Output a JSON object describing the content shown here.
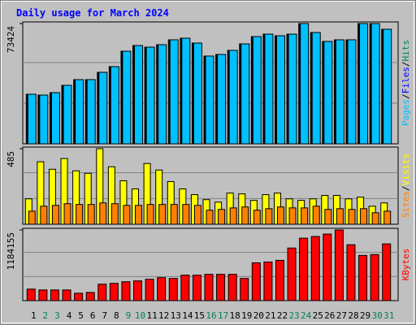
{
  "chart_data": [
    {
      "type": "bar",
      "title": "Daily usage for March 2024",
      "categories": [
        "1",
        "2",
        "3",
        "4",
        "5",
        "6",
        "7",
        "8",
        "9",
        "10",
        "11",
        "12",
        "13",
        "14",
        "15",
        "16",
        "17",
        "18",
        "19",
        "20",
        "21",
        "22",
        "23",
        "24",
        "25",
        "26",
        "27",
        "28",
        "29",
        "30",
        "31"
      ],
      "category_colors": [
        "#000000",
        "#00805c",
        "#00805c",
        "#000000",
        "#000000",
        "#000000",
        "#000000",
        "#000000",
        "#00805c",
        "#00805c",
        "#000000",
        "#000000",
        "#000000",
        "#000000",
        "#000000",
        "#00805c",
        "#00805c",
        "#000000",
        "#000000",
        "#000000",
        "#000000",
        "#000000",
        "#00805c",
        "#00805c",
        "#000000",
        "#000000",
        "#000000",
        "#000000",
        "#000000",
        "#00805c",
        "#00805c"
      ],
      "legend_separator": "/",
      "ylim": [
        0,
        73424
      ],
      "yticks": [
        73424
      ],
      "series": [
        {
          "name": "Hits",
          "color": "#00805c",
          "values": [
            30262,
            29766,
            31255,
            35720,
            39193,
            39193,
            43658,
            47130,
            56557,
            60029,
            59037,
            60525,
            63502,
            64494,
            61517,
            53580,
            54572,
            57052,
            61021,
            65486,
            66974,
            65982,
            66974,
            73424,
            67966,
            62509,
            63502,
            63502,
            73424,
            73424,
            69951
          ]
        },
        {
          "name": "Files",
          "color": "#0000ff",
          "values": [
            30262,
            29766,
            31255,
            35720,
            39193,
            39193,
            43658,
            47130,
            56557,
            60029,
            59037,
            60525,
            63502,
            64494,
            61517,
            53580,
            54572,
            57052,
            61021,
            65486,
            66974,
            65982,
            66974,
            73424,
            67966,
            62509,
            63502,
            63502,
            73424,
            73424,
            69951
          ]
        },
        {
          "name": "Pages",
          "color": "#00c0ff",
          "values": [
            30262,
            29766,
            31255,
            35720,
            39193,
            39193,
            43658,
            47130,
            56557,
            60029,
            59037,
            60525,
            63502,
            64494,
            61517,
            53580,
            54572,
            57052,
            61021,
            65486,
            66974,
            65982,
            66974,
            73424,
            67966,
            62509,
            63502,
            63502,
            73424,
            73424,
            69951
          ]
        }
      ]
    },
    {
      "type": "bar",
      "ylim": [
        0,
        485
      ],
      "yticks": [
        485
      ],
      "series": [
        {
          "name": "Visits",
          "color": "#ffff00",
          "values": [
            163,
            401,
            353,
            422,
            343,
            327,
            485,
            369,
            279,
            227,
            390,
            348,
            274,
            227,
            190,
            158,
            142,
            200,
            195,
            153,
            190,
            200,
            163,
            153,
            163,
            185,
            185,
            163,
            174,
            116,
            137
          ]
        },
        {
          "name": "Sites",
          "color": "#ff8000",
          "values": [
            84,
            116,
            121,
            132,
            127,
            127,
            137,
            132,
            121,
            121,
            127,
            127,
            127,
            127,
            121,
            90,
            95,
            105,
            111,
            90,
            100,
            111,
            105,
            105,
            116,
            95,
            100,
            95,
            100,
            74,
            84
          ]
        }
      ]
    },
    {
      "type": "bar",
      "ylim": [
        0,
        1184155
      ],
      "yticks": [
        1184155
      ],
      "series": [
        {
          "name": "KBytes",
          "color": "#ff0000",
          "values": [
            192768,
            179000,
            179000,
            179000,
            123921,
            137692,
            275385,
            289154,
            316692,
            330460,
            358000,
            385539,
            371770,
            426848,
            426848,
            440617,
            440617,
            440617,
            371770,
            633385,
            647154,
            674693,
            881232,
            1046463,
            1073999,
            1115308,
            1184155,
            936309,
            757308,
            771078,
            950078
          ]
        }
      ]
    }
  ]
}
